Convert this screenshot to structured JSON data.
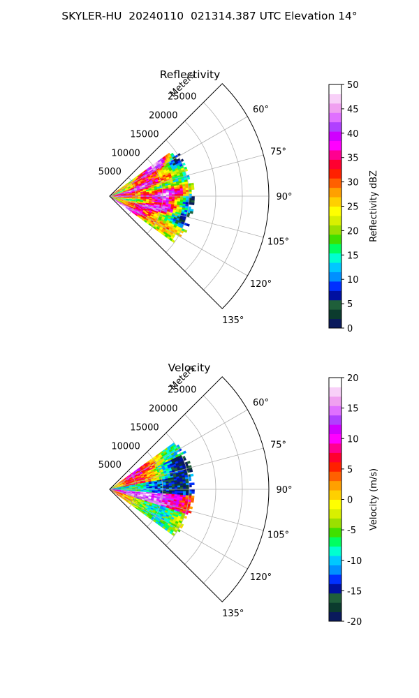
{
  "figure": {
    "title": "SKYLER-HU  20240110  021314.387 UTC Elevation 14°"
  },
  "chart_data": [
    {
      "type": "heatmap",
      "subtype": "polar-sector",
      "title": "Reflectivity",
      "radial_label": "Meters",
      "radial_ticks": [
        "5000",
        "10000",
        "15000",
        "20000",
        "25000"
      ],
      "radial_tick_values": [
        5000,
        10000,
        15000,
        20000,
        25000
      ],
      "range_max_m": 30000,
      "azimuth_ticks": [
        "60°",
        "75°",
        "90°",
        "105°",
        "120°",
        "135°"
      ],
      "azimuth_tick_values": [
        60,
        75,
        90,
        105,
        120,
        135
      ],
      "azimuth_range_deg": [
        45,
        135
      ],
      "data_azimuth_range_deg": [
        54,
        126
      ],
      "data_range_extent_m": 16000,
      "grid": true,
      "colorbar": {
        "label": "Reflectivity dBZ",
        "ticks": [
          "0",
          "5",
          "10",
          "15",
          "20",
          "25",
          "30",
          "35",
          "40",
          "45",
          "50"
        ],
        "min": 0,
        "max": 50,
        "colors": [
          "#0a1a5c",
          "#0b3b2e",
          "#1f5f3a",
          "#0010a0",
          "#0030ff",
          "#0090ff",
          "#00c8ff",
          "#00ffd0",
          "#00ff60",
          "#40e000",
          "#9ae000",
          "#d8f000",
          "#ffff00",
          "#ffd000",
          "#ffa000",
          "#ff6000",
          "#ff2000",
          "#ff0030",
          "#ff0090",
          "#ff00ff",
          "#d000ff",
          "#b040ff",
          "#e070ff",
          "#f0a0f0",
          "#f8d0f8",
          "#ffffff"
        ]
      }
    },
    {
      "type": "heatmap",
      "subtype": "polar-sector",
      "title": "Velocity",
      "radial_label": "Meters",
      "radial_ticks": [
        "5000",
        "10000",
        "15000",
        "20000",
        "25000"
      ],
      "radial_tick_values": [
        5000,
        10000,
        15000,
        20000,
        25000
      ],
      "range_max_m": 30000,
      "azimuth_ticks": [
        "60°",
        "75°",
        "90°",
        "105°",
        "120°",
        "135°"
      ],
      "azimuth_tick_values": [
        60,
        75,
        90,
        105,
        120,
        135
      ],
      "azimuth_range_deg": [
        45,
        135
      ],
      "data_azimuth_range_deg": [
        54,
        126
      ],
      "data_range_extent_m": 16000,
      "grid": true,
      "colorbar": {
        "label": "Velocity (m/s)",
        "ticks": [
          "-20",
          "-15",
          "-10",
          "-5",
          "0",
          "5",
          "10",
          "15",
          "20"
        ],
        "min": -20,
        "max": 20,
        "colors": [
          "#0a1a5c",
          "#0b3b2e",
          "#1f5f3a",
          "#0010a0",
          "#0030ff",
          "#0090ff",
          "#00c8ff",
          "#00ffd0",
          "#00ff60",
          "#40e000",
          "#9ae000",
          "#d8f000",
          "#ffff00",
          "#ffd000",
          "#ffa000",
          "#ff6000",
          "#ff2000",
          "#ff0030",
          "#ff0090",
          "#ff00ff",
          "#d000ff",
          "#b040ff",
          "#e070ff",
          "#f0a0f0",
          "#f8d0f8",
          "#ffffff"
        ]
      }
    }
  ]
}
